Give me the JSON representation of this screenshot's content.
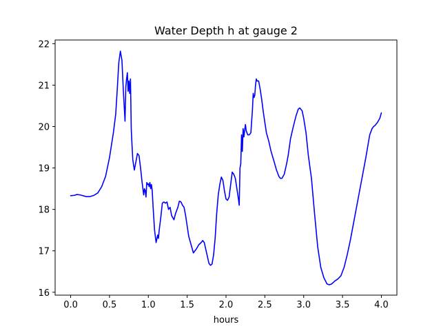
{
  "chart_data": {
    "type": "line",
    "title": "Water Depth h at gauge 2",
    "xlabel": "hours",
    "ylabel": "",
    "xlim": [
      -0.2,
      4.2
    ],
    "ylim": [
      15.93,
      22.09
    ],
    "xticks": [
      0.0,
      0.5,
      1.0,
      1.5,
      2.0,
      2.5,
      3.0,
      3.5,
      4.0
    ],
    "xtick_labels": [
      "0.0",
      "0.5",
      "1.0",
      "1.5",
      "2.0",
      "2.5",
      "3.0",
      "3.5",
      "4.0"
    ],
    "yticks": [
      16,
      17,
      18,
      19,
      20,
      21,
      22
    ],
    "ytick_labels": [
      "16",
      "17",
      "18",
      "19",
      "20",
      "21",
      "22"
    ],
    "grid": false,
    "line_color": "#0000ff",
    "series": [
      {
        "x": [
          0.0,
          0.05,
          0.08,
          0.12,
          0.2,
          0.25,
          0.3,
          0.35,
          0.4,
          0.45,
          0.5,
          0.55,
          0.58,
          0.6,
          0.62,
          0.64,
          0.66,
          0.68,
          0.7,
          0.71,
          0.72,
          0.73,
          0.74,
          0.75,
          0.76,
          0.77,
          0.78,
          0.79,
          0.8,
          0.82,
          0.84,
          0.86,
          0.88,
          0.9,
          0.92,
          0.94,
          0.95,
          0.96,
          0.97,
          0.98,
          0.99,
          1.0,
          1.01,
          1.02,
          1.03,
          1.04,
          1.05,
          1.06,
          1.08,
          1.1,
          1.12,
          1.13,
          1.14,
          1.16,
          1.18,
          1.2,
          1.22,
          1.24,
          1.26,
          1.28,
          1.3,
          1.33,
          1.35,
          1.38,
          1.4,
          1.42,
          1.44,
          1.46,
          1.48,
          1.5,
          1.52,
          1.55,
          1.58,
          1.62,
          1.65,
          1.68,
          1.7,
          1.72,
          1.75,
          1.78,
          1.8,
          1.82,
          1.84,
          1.86,
          1.88,
          1.9,
          1.92,
          1.94,
          1.96,
          1.98,
          2.0,
          2.02,
          2.04,
          2.06,
          2.08,
          2.1,
          2.12,
          2.14,
          2.16,
          2.17,
          2.18,
          2.19,
          2.2,
          2.21,
          2.22,
          2.23,
          2.24,
          2.25,
          2.26,
          2.28,
          2.3,
          2.32,
          2.34,
          2.35,
          2.36,
          2.37,
          2.38,
          2.39,
          2.4,
          2.42,
          2.44,
          2.46,
          2.48,
          2.5,
          2.52,
          2.55,
          2.58,
          2.62,
          2.65,
          2.68,
          2.7,
          2.72,
          2.75,
          2.78,
          2.8,
          2.83,
          2.86,
          2.9,
          2.93,
          2.95,
          2.98,
          3.0,
          3.03,
          3.06,
          3.1,
          3.14,
          3.18,
          3.22,
          3.26,
          3.3,
          3.33,
          3.36,
          3.4,
          3.44,
          3.48,
          3.52,
          3.56,
          3.6,
          3.65,
          3.7,
          3.75,
          3.8,
          3.85,
          3.88,
          3.9,
          3.92,
          3.95,
          3.98,
          4.0
        ],
        "y": [
          18.33,
          18.34,
          18.36,
          18.35,
          18.31,
          18.31,
          18.34,
          18.4,
          18.55,
          18.8,
          19.25,
          19.85,
          20.3,
          20.9,
          21.55,
          21.82,
          21.6,
          20.8,
          20.13,
          20.95,
          21.15,
          21.3,
          20.85,
          21.1,
          20.8,
          21.15,
          19.95,
          19.55,
          19.2,
          18.95,
          19.15,
          19.35,
          19.3,
          19.0,
          18.65,
          18.35,
          18.5,
          18.45,
          18.3,
          18.65,
          18.6,
          18.62,
          18.55,
          18.65,
          18.5,
          18.6,
          18.45,
          18.1,
          17.5,
          17.2,
          17.38,
          17.3,
          17.5,
          17.8,
          18.15,
          18.18,
          18.15,
          18.18,
          18.0,
          18.05,
          17.85,
          17.75,
          17.9,
          18.05,
          18.2,
          18.18,
          18.1,
          18.05,
          17.85,
          17.6,
          17.35,
          17.15,
          16.95,
          17.05,
          17.15,
          17.2,
          17.25,
          17.2,
          16.95,
          16.7,
          16.65,
          16.68,
          16.9,
          17.3,
          17.9,
          18.35,
          18.6,
          18.78,
          18.7,
          18.45,
          18.25,
          18.22,
          18.3,
          18.6,
          18.9,
          18.85,
          18.75,
          18.5,
          18.25,
          18.1,
          19.0,
          19.1,
          19.8,
          19.4,
          19.95,
          19.75,
          19.9,
          20.05,
          19.9,
          19.8,
          19.8,
          19.85,
          20.4,
          20.8,
          20.7,
          20.75,
          21.0,
          21.15,
          21.1,
          21.1,
          20.9,
          20.65,
          20.35,
          20.1,
          19.85,
          19.65,
          19.4,
          19.15,
          18.95,
          18.8,
          18.75,
          18.75,
          18.85,
          19.1,
          19.3,
          19.7,
          19.95,
          20.25,
          20.42,
          20.45,
          20.38,
          20.2,
          19.85,
          19.3,
          18.75,
          17.9,
          17.1,
          16.6,
          16.35,
          16.2,
          16.18,
          16.2,
          16.27,
          16.32,
          16.4,
          16.6,
          16.9,
          17.25,
          17.75,
          18.25,
          18.75,
          19.25,
          19.8,
          19.95,
          20.0,
          20.03,
          20.1,
          20.2,
          20.33
        ]
      }
    ]
  }
}
